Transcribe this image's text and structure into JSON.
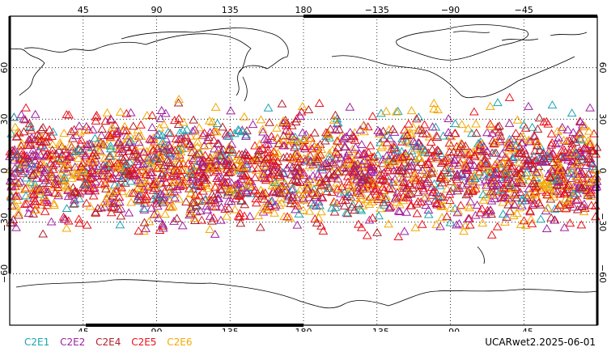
{
  "map": {
    "top_lon_ticks": [
      "45",
      "90",
      "135",
      "180",
      "−135",
      "−90",
      "−45"
    ],
    "bottom_lon_ticks": [
      "45",
      "90",
      "135",
      "180",
      "−135",
      "−90",
      "−45"
    ],
    "left_lat_ticks": [
      "60",
      "30",
      "0",
      "−30",
      "−60"
    ],
    "right_lat_ticks": [
      "60",
      "30",
      "0",
      "−30",
      "−60"
    ],
    "lon_values": [
      45,
      90,
      135,
      180,
      -135,
      -90,
      -45
    ],
    "lat_values": [
      60,
      30,
      0,
      -30,
      -60
    ],
    "lon_range": [
      0,
      360
    ],
    "lat_range": [
      -90,
      90
    ],
    "grid": "dotted"
  },
  "chart_data": {
    "type": "scatter",
    "marker": "triangle-open",
    "series": [
      {
        "name": "C2E1",
        "color": "#1aa5b0"
      },
      {
        "name": "C2E2",
        "color": "#a020a0"
      },
      {
        "name": "C2E4",
        "color": "#b0202a"
      },
      {
        "name": "C2E5",
        "color": "#e8101a"
      },
      {
        "name": "C2E6",
        "color": "#f5a800"
      }
    ],
    "lat_extent": [
      -45,
      45
    ]
  },
  "legend": {
    "items": [
      {
        "label": "C2E1",
        "color": "#1aa5b0"
      },
      {
        "label": "C2E2",
        "color": "#a020a0"
      },
      {
        "label": "C2E4",
        "color": "#b0202a"
      },
      {
        "label": "C2E5",
        "color": "#e8101a"
      },
      {
        "label": "C2E6",
        "color": "#f5a800"
      }
    ]
  },
  "caption": "UCARwet2.2025-06-01"
}
